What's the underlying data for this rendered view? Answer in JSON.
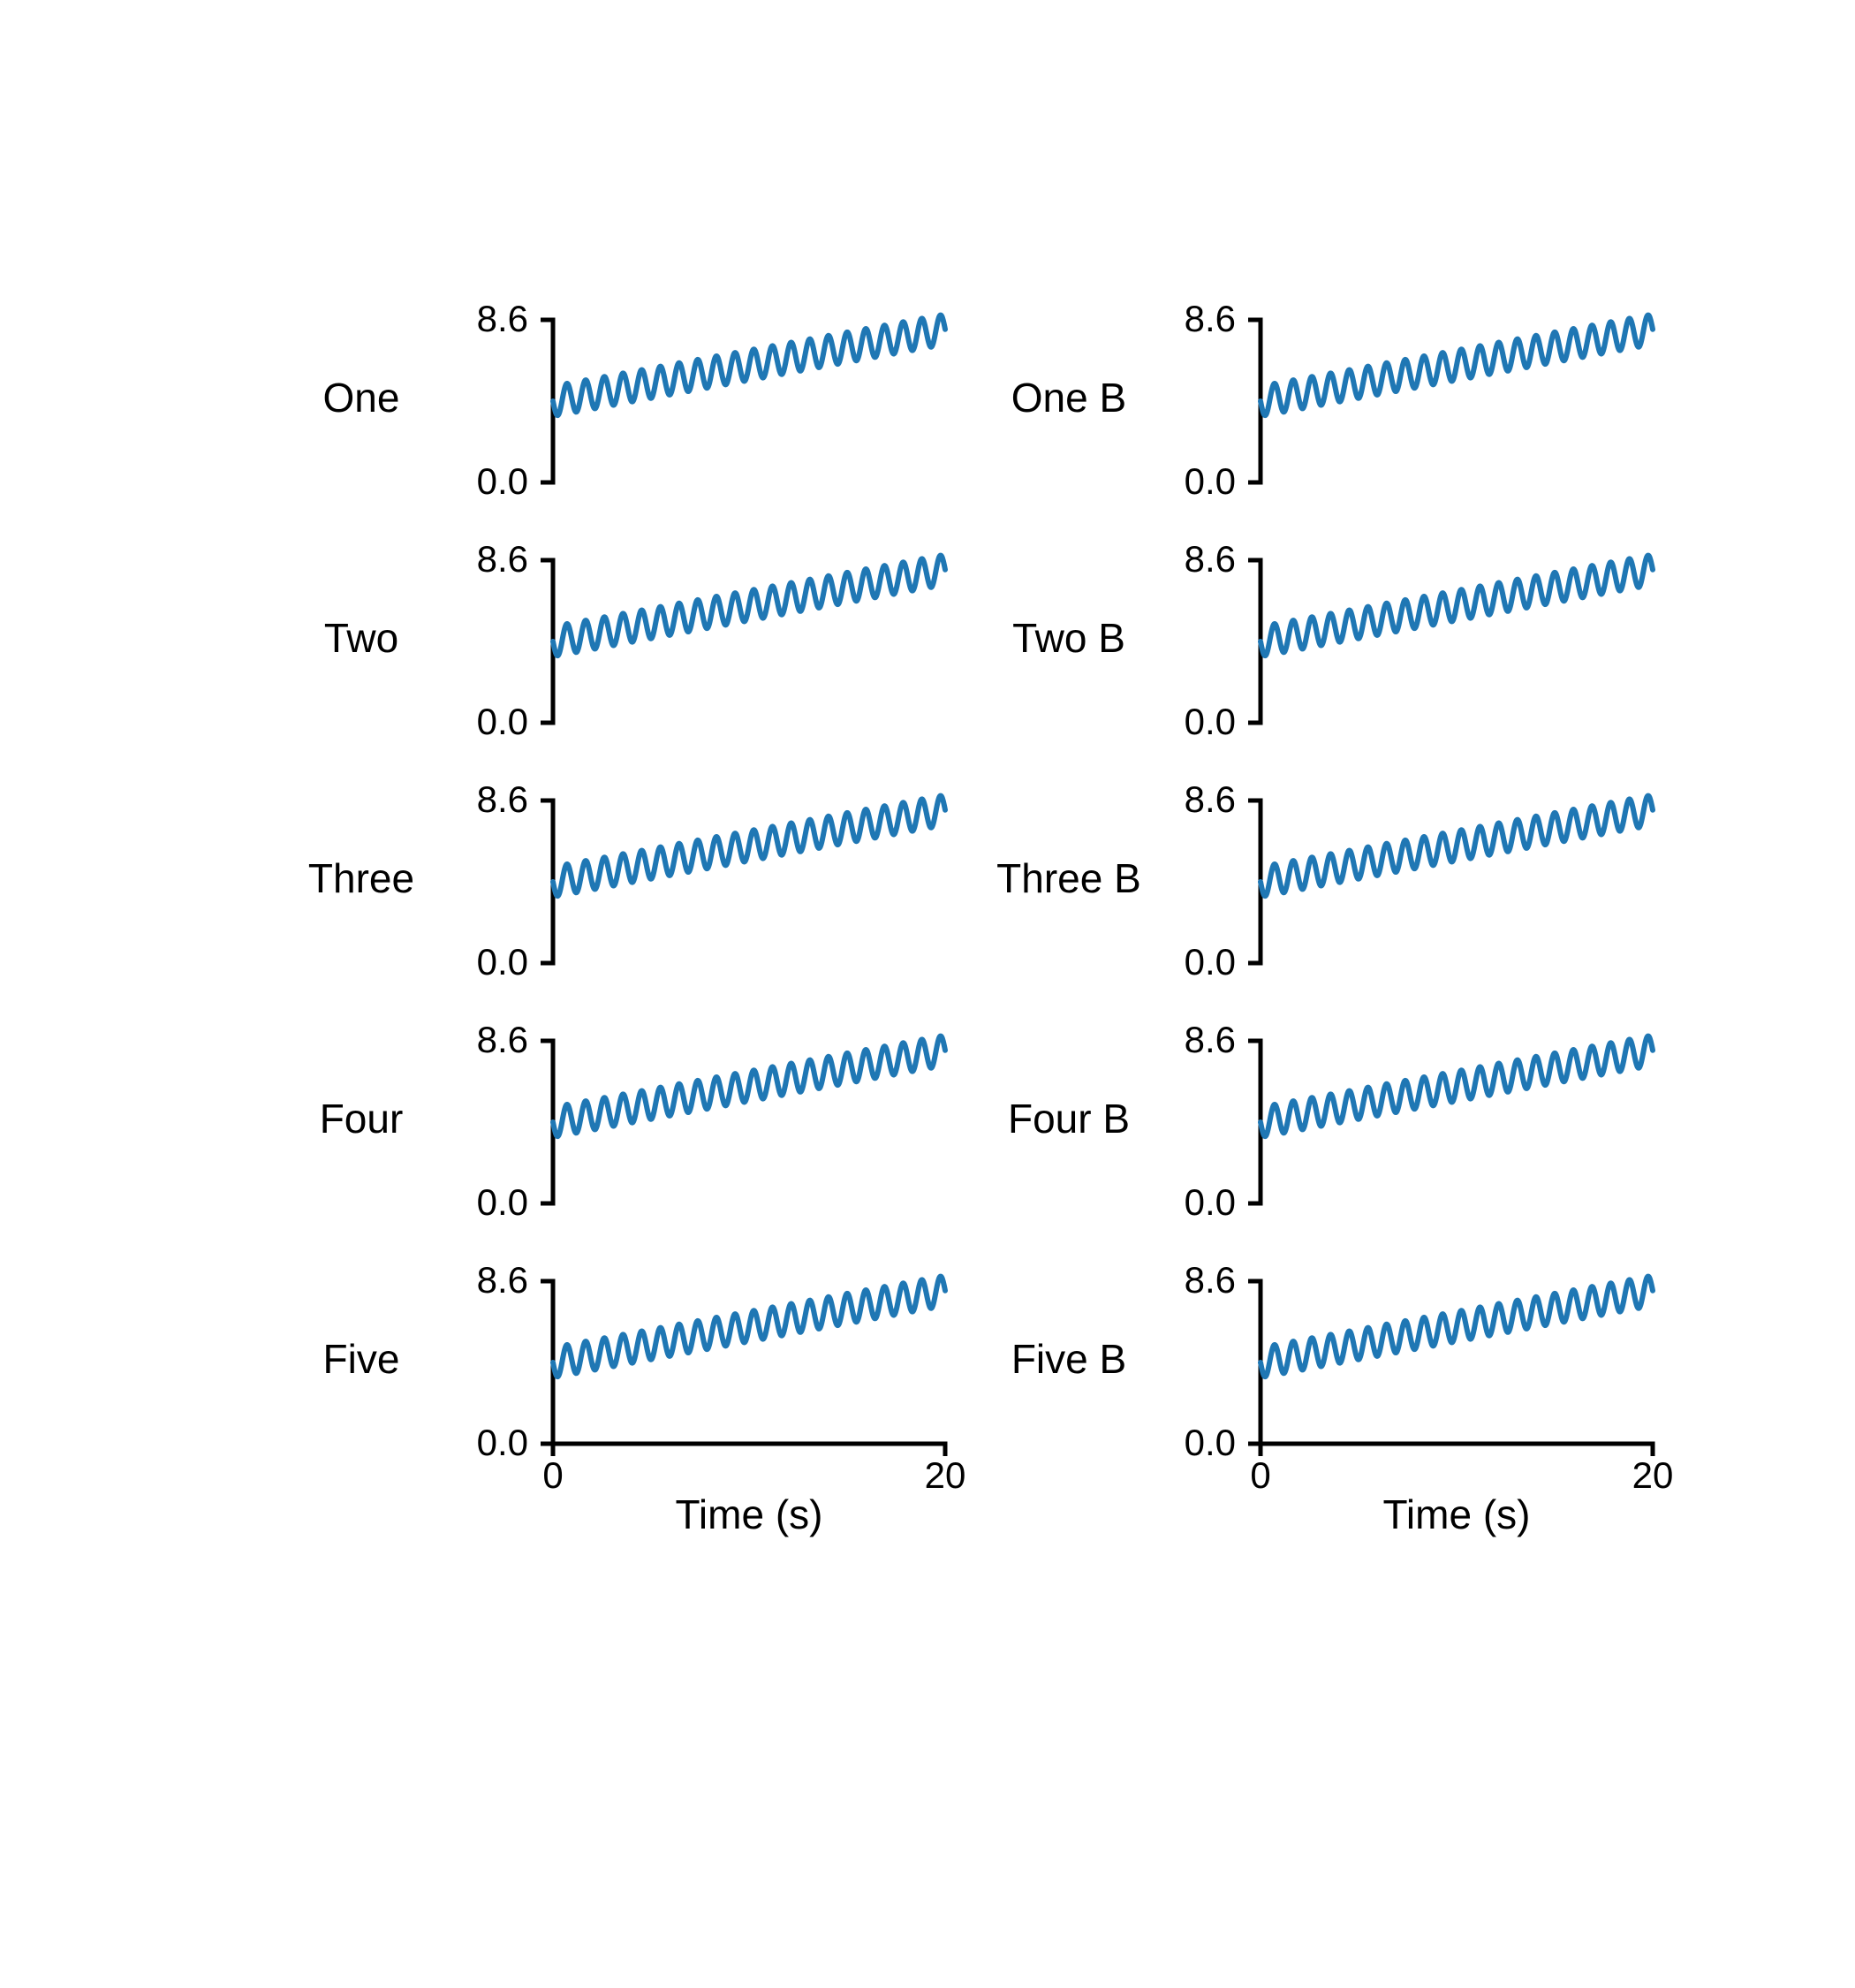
{
  "chart_data": [
    {
      "type": "line",
      "column": 0,
      "row": 0,
      "row_label": "One",
      "ylim": [
        0.0,
        8.6
      ],
      "yticks": [
        "8.6",
        "0.0"
      ],
      "xlim": [
        0,
        20
      ],
      "xticks": [],
      "xlabel": "",
      "series": [
        {
          "trend_start": 4.3,
          "trend_end": 8.1,
          "amplitude": 0.8,
          "cycles": 21
        }
      ]
    },
    {
      "type": "line",
      "column": 0,
      "row": 1,
      "row_label": "Two",
      "ylim": [
        0.0,
        8.6
      ],
      "yticks": [
        "8.6",
        "0.0"
      ],
      "xlim": [
        0,
        20
      ],
      "xticks": [],
      "xlabel": "",
      "series": [
        {
          "trend_start": 4.3,
          "trend_end": 8.1,
          "amplitude": 0.8,
          "cycles": 21
        }
      ]
    },
    {
      "type": "line",
      "column": 0,
      "row": 2,
      "row_label": "Three",
      "ylim": [
        0.0,
        8.6
      ],
      "yticks": [
        "8.6",
        "0.0"
      ],
      "xlim": [
        0,
        20
      ],
      "xticks": [],
      "xlabel": "",
      "series": [
        {
          "trend_start": 4.3,
          "trend_end": 8.1,
          "amplitude": 0.8,
          "cycles": 21
        }
      ]
    },
    {
      "type": "line",
      "column": 0,
      "row": 3,
      "row_label": "Four",
      "ylim": [
        0.0,
        8.6
      ],
      "yticks": [
        "8.6",
        "0.0"
      ],
      "xlim": [
        0,
        20
      ],
      "xticks": [],
      "xlabel": "",
      "series": [
        {
          "trend_start": 4.3,
          "trend_end": 8.1,
          "amplitude": 0.8,
          "cycles": 21
        }
      ]
    },
    {
      "type": "line",
      "column": 0,
      "row": 4,
      "row_label": "Five",
      "ylim": [
        0.0,
        8.6
      ],
      "yticks": [
        "8.6",
        "0.0"
      ],
      "xlim": [
        0,
        20
      ],
      "xticks": [
        "0",
        "20"
      ],
      "xlabel": "Time (s)",
      "series": [
        {
          "trend_start": 4.3,
          "trend_end": 8.1,
          "amplitude": 0.8,
          "cycles": 21
        }
      ]
    },
    {
      "type": "line",
      "column": 1,
      "row": 0,
      "row_label": "One B",
      "ylim": [
        0.0,
        8.6
      ],
      "yticks": [
        "8.6",
        "0.0"
      ],
      "xlim": [
        0,
        20
      ],
      "xticks": [],
      "xlabel": "",
      "series": [
        {
          "trend_start": 4.3,
          "trend_end": 8.1,
          "amplitude": 0.8,
          "cycles": 21
        }
      ]
    },
    {
      "type": "line",
      "column": 1,
      "row": 1,
      "row_label": "Two B",
      "ylim": [
        0.0,
        8.6
      ],
      "yticks": [
        "8.6",
        "0.0"
      ],
      "xlim": [
        0,
        20
      ],
      "xticks": [],
      "xlabel": "",
      "series": [
        {
          "trend_start": 4.3,
          "trend_end": 8.1,
          "amplitude": 0.8,
          "cycles": 21
        }
      ]
    },
    {
      "type": "line",
      "column": 1,
      "row": 2,
      "row_label": "Three B",
      "ylim": [
        0.0,
        8.6
      ],
      "yticks": [
        "8.6",
        "0.0"
      ],
      "xlim": [
        0,
        20
      ],
      "xticks": [],
      "xlabel": "",
      "series": [
        {
          "trend_start": 4.3,
          "trend_end": 8.1,
          "amplitude": 0.8,
          "cycles": 21
        }
      ]
    },
    {
      "type": "line",
      "column": 1,
      "row": 3,
      "row_label": "Four B",
      "ylim": [
        0.0,
        8.6
      ],
      "yticks": [
        "8.6",
        "0.0"
      ],
      "xlim": [
        0,
        20
      ],
      "xticks": [],
      "xlabel": "",
      "series": [
        {
          "trend_start": 4.3,
          "trend_end": 8.1,
          "amplitude": 0.8,
          "cycles": 21
        }
      ]
    },
    {
      "type": "line",
      "column": 1,
      "row": 4,
      "row_label": "Five B",
      "ylim": [
        0.0,
        8.6
      ],
      "yticks": [
        "8.6",
        "0.0"
      ],
      "xlim": [
        0,
        20
      ],
      "xticks": [
        "0",
        "20"
      ],
      "xlabel": "Time (s)",
      "series": [
        {
          "trend_start": 4.3,
          "trend_end": 8.1,
          "amplitude": 0.8,
          "cycles": 21
        }
      ]
    }
  ],
  "colors": {
    "series": "#1f77b4",
    "axes": "#000000",
    "background": "#ffffff"
  }
}
